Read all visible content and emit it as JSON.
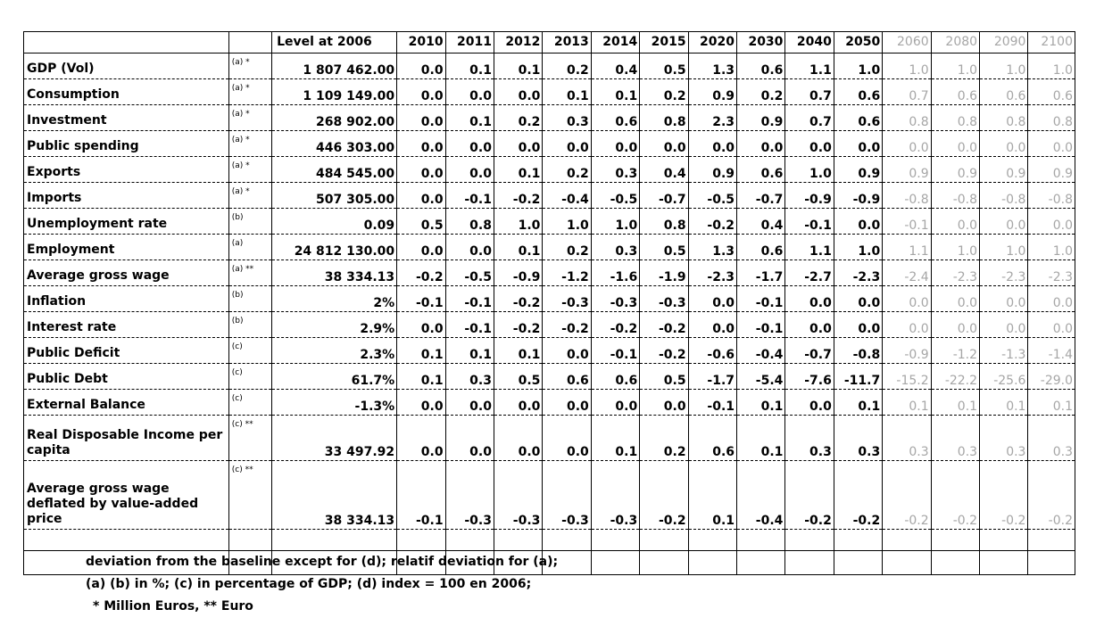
{
  "table": {
    "level_header": "Level at 2006",
    "years": [
      "2010",
      "2011",
      "2012",
      "2013",
      "2014",
      "2015",
      "2020",
      "2030",
      "2040",
      "2050",
      "2060",
      "2080",
      "2090",
      "2100"
    ],
    "grey_from_index": 10,
    "rows": [
      {
        "label": "GDP (Vol)",
        "note": "(a) *",
        "level": "1 807 462.00",
        "values": [
          "0.0",
          "0.1",
          "0.1",
          "0.2",
          "0.4",
          "0.5",
          "1.3",
          "0.6",
          "1.1",
          "1.0",
          "1.0",
          "1.0",
          "1.0",
          "1.0"
        ]
      },
      {
        "label": "Consumption",
        "note": "(a) *",
        "level": "1 109 149.00",
        "values": [
          "0.0",
          "0.0",
          "0.0",
          "0.1",
          "0.1",
          "0.2",
          "0.9",
          "0.2",
          "0.7",
          "0.6",
          "0.7",
          "0.6",
          "0.6",
          "0.6"
        ]
      },
      {
        "label": "Investment",
        "note": "(a) *",
        "level": "268 902.00",
        "values": [
          "0.0",
          "0.1",
          "0.2",
          "0.3",
          "0.6",
          "0.8",
          "2.3",
          "0.9",
          "0.7",
          "0.6",
          "0.8",
          "0.8",
          "0.8",
          "0.8"
        ]
      },
      {
        "label": "Public spending",
        "note": "(a) *",
        "level": "446 303.00",
        "values": [
          "0.0",
          "0.0",
          "0.0",
          "0.0",
          "0.0",
          "0.0",
          "0.0",
          "0.0",
          "0.0",
          "0.0",
          "0.0",
          "0.0",
          "0.0",
          "0.0"
        ]
      },
      {
        "label": "Exports",
        "note": "(a) *",
        "level": "484 545.00",
        "values": [
          "0.0",
          "0.0",
          "0.1",
          "0.2",
          "0.3",
          "0.4",
          "0.9",
          "0.6",
          "1.0",
          "0.9",
          "0.9",
          "0.9",
          "0.9",
          "0.9"
        ]
      },
      {
        "label": "Imports",
        "note": "(a) *",
        "level": "507 305.00",
        "values": [
          "0.0",
          "-0.1",
          "-0.2",
          "-0.4",
          "-0.5",
          "-0.7",
          "-0.5",
          "-0.7",
          "-0.9",
          "-0.9",
          "-0.8",
          "-0.8",
          "-0.8",
          "-0.8"
        ]
      },
      {
        "label": "Unemployment rate",
        "note": "(b)",
        "level": "0.09",
        "values": [
          "0.5",
          "0.8",
          "1.0",
          "1.0",
          "1.0",
          "0.8",
          "-0.2",
          "0.4",
          "-0.1",
          "0.0",
          "-0.1",
          "0.0",
          "0.0",
          "0.0"
        ]
      },
      {
        "label": "Employment",
        "note": "(a)",
        "level": "24 812 130.00",
        "values": [
          "0.0",
          "0.0",
          "0.1",
          "0.2",
          "0.3",
          "0.5",
          "1.3",
          "0.6",
          "1.1",
          "1.0",
          "1.1",
          "1.0",
          "1.0",
          "1.0"
        ]
      },
      {
        "label": "Average gross wage",
        "note": "(a) **",
        "level": "38 334.13",
        "values": [
          "-0.2",
          "-0.5",
          "-0.9",
          "-1.2",
          "-1.6",
          "-1.9",
          "-2.3",
          "-1.7",
          "-2.7",
          "-2.3",
          "-2.4",
          "-2.3",
          "-2.3",
          "-2.3"
        ]
      },
      {
        "label": "Inflation",
        "note": "(b)",
        "level": "2%",
        "values": [
          "-0.1",
          "-0.1",
          "-0.2",
          "-0.3",
          "-0.3",
          "-0.3",
          "0.0",
          "-0.1",
          "0.0",
          "0.0",
          "0.0",
          "0.0",
          "0.0",
          "0.0"
        ]
      },
      {
        "label": "Interest rate",
        "note": "(b)",
        "level": "2.9%",
        "values": [
          "0.0",
          "-0.1",
          "-0.2",
          "-0.2",
          "-0.2",
          "-0.2",
          "0.0",
          "-0.1",
          "0.0",
          "0.0",
          "0.0",
          "0.0",
          "0.0",
          "0.0"
        ]
      },
      {
        "label": "Public Deficit",
        "note": "(c)",
        "level": "2.3%",
        "values": [
          "0.1",
          "0.1",
          "0.1",
          "0.0",
          "-0.1",
          "-0.2",
          "-0.6",
          "-0.4",
          "-0.7",
          "-0.8",
          "-0.9",
          "-1.2",
          "-1.3",
          "-1.4"
        ]
      },
      {
        "label": "Public Debt",
        "note": "(c)",
        "level": "61.7%",
        "values": [
          "0.1",
          "0.3",
          "0.5",
          "0.6",
          "0.6",
          "0.5",
          "-1.7",
          "-5.4",
          "-7.6",
          "-11.7",
          "-15.2",
          "-22.2",
          "-25.6",
          "-29.0"
        ]
      },
      {
        "label": "External Balance",
        "note": "(c)",
        "level": "-1.3%",
        "values": [
          "0.0",
          "0.0",
          "0.0",
          "0.0",
          "0.0",
          "0.0",
          "-0.1",
          "0.1",
          "0.0",
          "0.1",
          "0.1",
          "0.1",
          "0.1",
          "0.1"
        ]
      },
      {
        "label": "Real Disposable Income per capita",
        "note": "(c) **",
        "level": "33 497.92",
        "values": [
          "0.0",
          "0.0",
          "0.0",
          "0.0",
          "0.1",
          "0.2",
          "0.6",
          "0.1",
          "0.3",
          "0.3",
          "0.3",
          "0.3",
          "0.3",
          "0.3"
        ]
      },
      {
        "label": "Average gross wage deflated by value-added price",
        "note": "(c) **",
        "level": "38 334.13",
        "values": [
          "-0.1",
          "-0.3",
          "-0.3",
          "-0.3",
          "-0.3",
          "-0.2",
          "0.1",
          "-0.4",
          "-0.2",
          "-0.2",
          "-0.2",
          "-0.2",
          "-0.2",
          "-0.2"
        ]
      }
    ]
  },
  "footnotes": {
    "line1": "deviation from the baseline except for (d); relatif deviation for (a);",
    "line2": "(a) (b) in %; (c) in percentage of GDP; (d) index = 100 en 2006;",
    "line3": "* Million Euros, ** Euro"
  }
}
